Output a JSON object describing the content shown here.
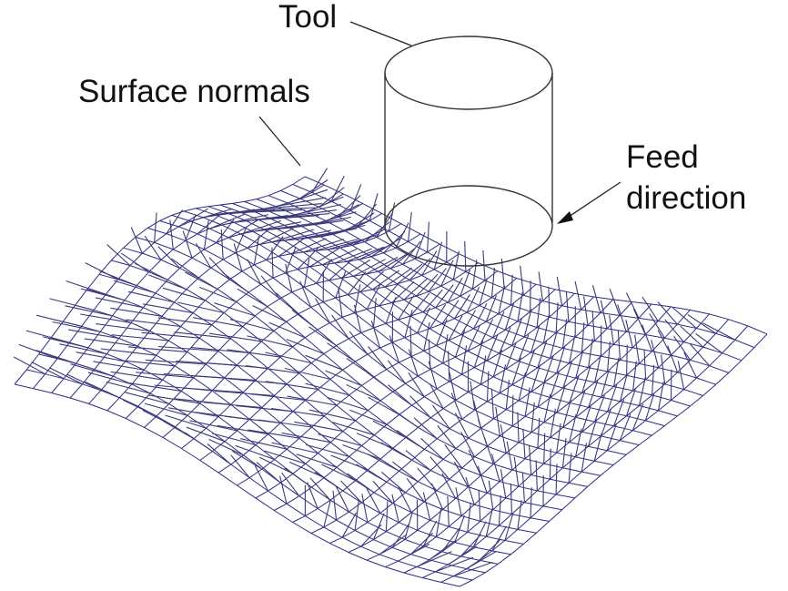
{
  "labels": {
    "tool": "Tool",
    "surface_normals": "Surface normals",
    "feed_line1": "Feed",
    "feed_line2": "direction"
  },
  "colors": {
    "mesh": "#2d2d86",
    "normals": "#3a3a7a",
    "outline": "#333333",
    "text": "#111111"
  },
  "mesh": {
    "rows": 24,
    "cols": 24
  }
}
